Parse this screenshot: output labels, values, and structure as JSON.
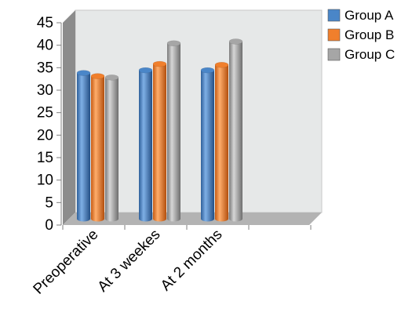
{
  "chart_data": {
    "type": "bar",
    "style": "3d-cylinder",
    "categories": [
      "Preoperative",
      "At 3 weekes",
      "At 2 months"
    ],
    "series": [
      {
        "name": "Group A",
        "color": "#4a86c8",
        "values": [
          33.3,
          33.9,
          33.9
        ]
      },
      {
        "name": "Group B",
        "color": "#f07f2c",
        "values": [
          32.6,
          35.3,
          35.1
        ]
      },
      {
        "name": "Group C",
        "color": "#a6a6a6",
        "values": [
          32.3,
          39.9,
          40.3
        ]
      }
    ],
    "ylim": [
      0,
      45
    ],
    "yticks": [
      "0",
      "5",
      "10",
      "15",
      "20",
      "25",
      "30",
      "35",
      "40",
      "45"
    ],
    "legend_position": "top-right",
    "wall_color": "#e6e8e8",
    "side_wall_color": "#8c8c8c",
    "floor_color": "#b3b3b3"
  }
}
